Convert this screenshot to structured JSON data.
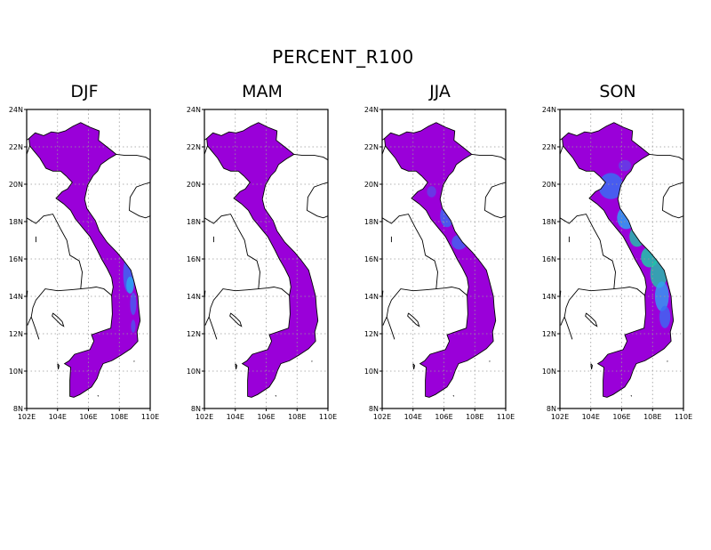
{
  "title": "PERCENT_R100",
  "panels": [
    {
      "season": "DJF",
      "highlight": "djf"
    },
    {
      "season": "MAM",
      "highlight": "none"
    },
    {
      "season": "JJA",
      "highlight": "jja"
    },
    {
      "season": "SON",
      "highlight": "son"
    }
  ],
  "axes": {
    "y_ticks": [
      "24N",
      "22N",
      "20N",
      "18N",
      "16N",
      "14N",
      "12N",
      "10N",
      "8N"
    ],
    "x_ticks": [
      "102E",
      "104E",
      "106E",
      "108E",
      "110E"
    ],
    "lon_range": [
      102,
      110
    ],
    "lat_range": [
      8,
      24
    ]
  },
  "colors": {
    "base_fill": "#9a00d9",
    "blue": "#3a6cf2",
    "light_blue": "#2fa0f2",
    "teal": "#1ec7a8"
  }
}
